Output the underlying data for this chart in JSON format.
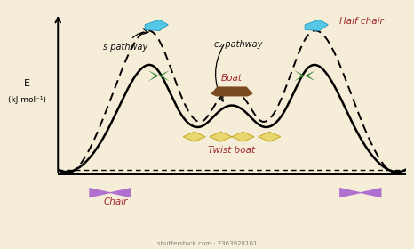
{
  "background_color": "#f5edd8",
  "solid_curve_color": "#000000",
  "dashed_curve_color": "#000000",
  "chair_color": "#b070d0",
  "half_chair_color": "#55c8e8",
  "twist_boat_color": "#e8d870",
  "boat_color": "#7b4a1e",
  "envelope_color": "#2e7d32",
  "label_color_red": "#a0282a",
  "label_color_black": "#111111",
  "ylabel_line1": "E",
  "ylabel_line2": "(kJ mol⁻¹)",
  "watermark": "shutterstock.com · 2363928101"
}
